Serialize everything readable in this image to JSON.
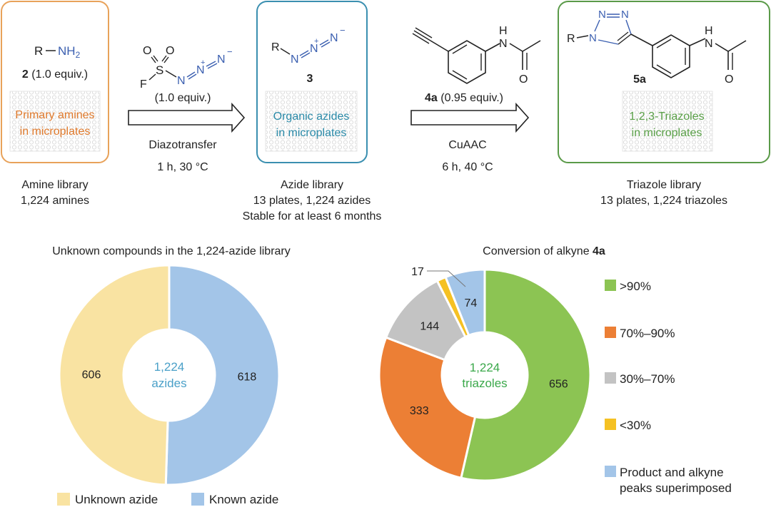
{
  "workflow": {
    "amine": {
      "r_label": "R",
      "nh2_label": "NH",
      "nh2_sub": "2",
      "compound_num": "2",
      "equiv": "(1.0 equiv.)",
      "box_line1": "Primary amines",
      "box_line2": "in microplates",
      "caption_line1": "Amine library",
      "caption_line2": "1,224 amines",
      "box_color": "#e8a25a",
      "text_color": "#e07a2c"
    },
    "reagent": {
      "o1": "O",
      "o2": "O",
      "s": "S",
      "f": "F",
      "n1": "N",
      "n2": "N",
      "n3": "N",
      "plus": "+",
      "minus": "−",
      "equiv": "(1.0 equiv.)",
      "condition_line1": "Diazotransfer",
      "condition_line2": "1 h, 30 °C"
    },
    "azide": {
      "r_label": "R",
      "n1": "N",
      "n2": "N",
      "n3": "N",
      "plus": "+",
      "minus": "−",
      "compound_num": "3",
      "box_line1": "Organic azides",
      "box_line2": "in microplates",
      "caption_line1": "Azide library",
      "caption_line2": "13 plates, 1,224 azides",
      "caption_line3": "Stable for at least 6 months",
      "box_color": "#3a8fb0",
      "text_color": "#2a8aa8"
    },
    "alkyne": {
      "h_label": "H",
      "n_label": "N",
      "o_label": "O",
      "compound_num": "4a",
      "equiv": "(0.95 equiv.)",
      "condition_line1": "CuAAC",
      "condition_line2": "6 h, 40 °C"
    },
    "triazole": {
      "r_label": "R",
      "n_top1": "N",
      "n_top2": "N",
      "n_ring": "N",
      "h_label": "H",
      "n_label": "N",
      "o_label": "O",
      "compound_num": "5a",
      "box_line1": "1,2,3-Triazoles",
      "box_line2": "in microplates",
      "caption_line1": "Triazole library",
      "caption_line2": "13 plates, 1,224 triazoles",
      "box_color": "#5a9a48",
      "text_color": "#5aa048"
    }
  },
  "chart_data": [
    {
      "type": "pie",
      "title": "Unknown compounds in the 1,224-azide library",
      "center_line1": "1,224",
      "center_line2": "azides",
      "center_color": "#4aa0c8",
      "slices": [
        {
          "name": "Known azide",
          "value": 618,
          "color": "#a3c5e8"
        },
        {
          "name": "Unknown azide",
          "value": 606,
          "color": "#f9e3a2"
        }
      ],
      "legend": [
        {
          "label": "Unknown azide",
          "color": "#f9e3a2"
        },
        {
          "label": "Known azide",
          "color": "#a3c5e8"
        }
      ]
    },
    {
      "type": "pie",
      "title": "Conversion of alkyne ",
      "title_bold": "4a",
      "center_line1": "1,224",
      "center_line2": "triazoles",
      "center_color": "#3aa84a",
      "slices": [
        {
          "name": ">90%",
          "value": 656,
          "color": "#8cc453"
        },
        {
          "name": "70%–90%",
          "value": 333,
          "color": "#ec7f35"
        },
        {
          "name": "30%–70%",
          "value": 144,
          "color": "#c3c3c3"
        },
        {
          "name": "<30%",
          "value": 17,
          "color": "#f5c123"
        },
        {
          "name": "Product and alkyne peaks superimposed",
          "value": 74,
          "color": "#a3c5e8"
        }
      ],
      "legend": [
        {
          "label": ">90%",
          "color": "#8cc453"
        },
        {
          "label": "70%–90%",
          "color": "#ec7f35"
        },
        {
          "label": "30%–70%",
          "color": "#c3c3c3"
        },
        {
          "label": "<30%",
          "color": "#f5c123"
        },
        {
          "label_line1": "Product and alkyne",
          "label_line2": "peaks superimposed",
          "color": "#a3c5e8"
        }
      ]
    }
  ]
}
